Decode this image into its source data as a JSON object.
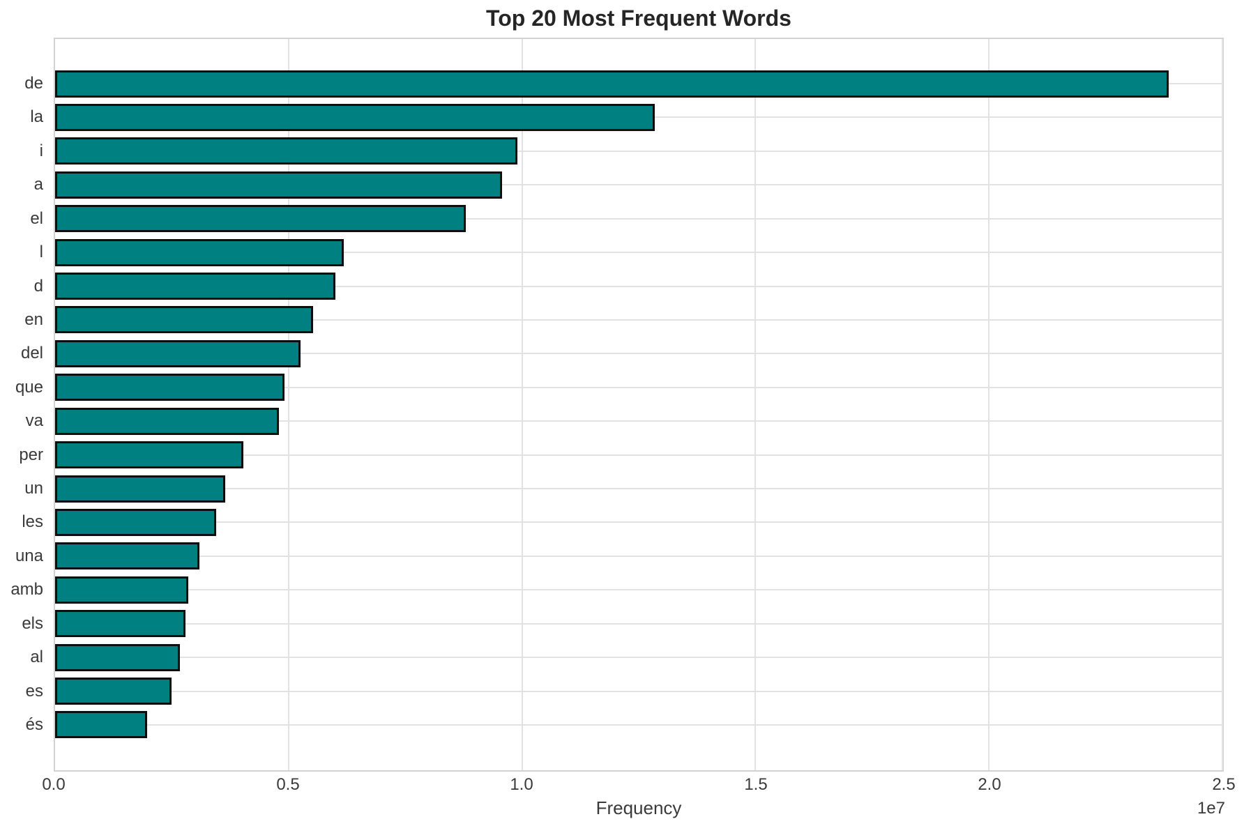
{
  "title": "Top 20 Most Frequent Words",
  "chart_data": {
    "type": "bar",
    "orientation": "horizontal",
    "title": "Top 20 Most Frequent Words",
    "xlabel": "Frequency",
    "ylabel": "",
    "offset_text": "1e7",
    "categories": [
      "de",
      "la",
      "i",
      "a",
      "el",
      "l",
      "d",
      "en",
      "del",
      "que",
      "va",
      "per",
      "un",
      "les",
      "una",
      "amb",
      "els",
      "al",
      "es",
      "és"
    ],
    "values": [
      23850000,
      12850000,
      9900000,
      9570000,
      8800000,
      6190000,
      6000000,
      5530000,
      5250000,
      4920000,
      4790000,
      4030000,
      3650000,
      3450000,
      3090000,
      2850000,
      2800000,
      2680000,
      2490000,
      1970000
    ],
    "xlim": [
      0,
      25000000
    ],
    "xticks": [
      0,
      5000000,
      10000000,
      15000000,
      20000000,
      25000000
    ],
    "xtick_labels": [
      "0.0",
      "0.5",
      "1.0",
      "1.5",
      "2.0",
      "2.5"
    ],
    "grid": true,
    "legend": false,
    "colors": {
      "bar_fill": "#008080",
      "bar_edge": "#0e0e0e",
      "grid": "#e2e2e2",
      "spine": "#d2d2d2",
      "tick_text": "#3a3a3a",
      "title_text": "#262626"
    }
  }
}
